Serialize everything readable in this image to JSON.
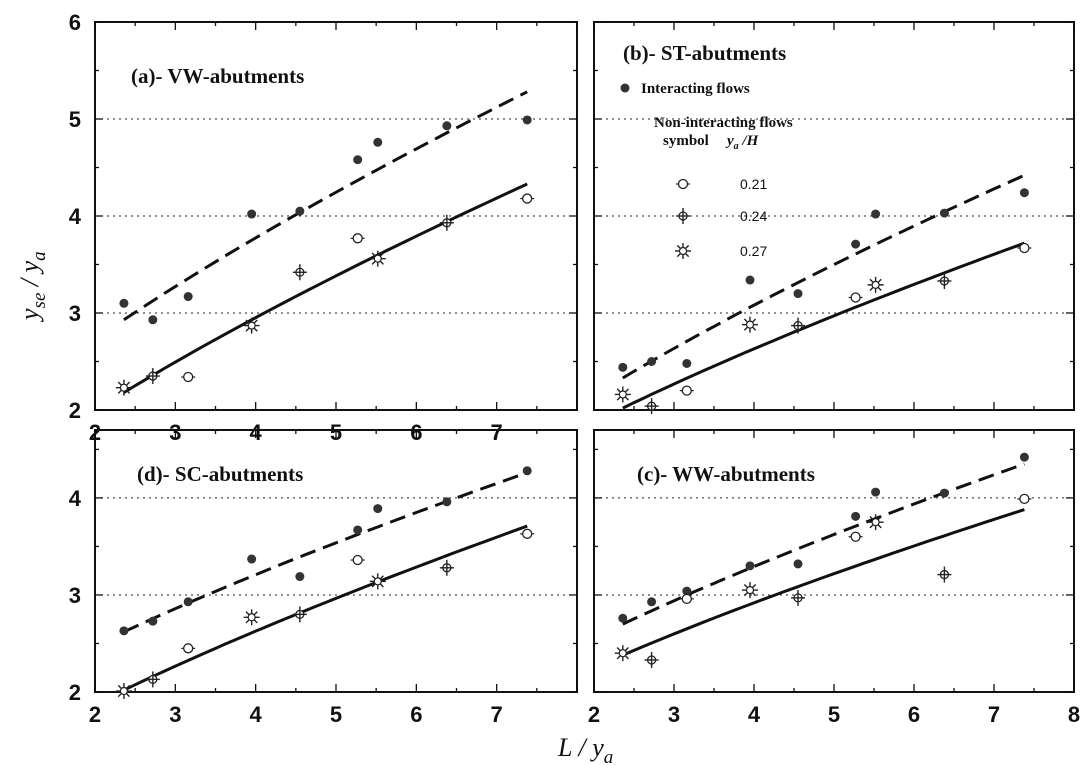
{
  "figure": {
    "xlabel": "L / y",
    "xlabel_sub": "a",
    "ylabel": "y",
    "ylabel_sub1": "se",
    "ylabel_mid": " / y",
    "ylabel_sub2": "a"
  },
  "legend": {
    "interacting": "Interacting flows",
    "noninteracting": "Non-interacting flows",
    "symbol_header": "symbol",
    "ratio_header": "y",
    "ratio_header_sub": "a",
    "ratio_header_tail": " /H",
    "entries": [
      {
        "marker": "open-circle",
        "value": "0.21"
      },
      {
        "marker": "cross-plus",
        "value": "0.24"
      },
      {
        "marker": "star",
        "value": "0.27"
      }
    ]
  },
  "chart_data": [
    {
      "type": "scatter",
      "title": "(a)- VW-abutments",
      "xlim": [
        2,
        8
      ],
      "ylim": [
        2,
        6
      ],
      "xticks": [
        2,
        3,
        4,
        5,
        6,
        7
      ],
      "yticks": [
        2,
        3,
        4,
        5,
        6
      ],
      "grid": "horizontal dotted at 3, 4, 5",
      "interacting": [
        [
          2.36,
          3.1
        ],
        [
          2.72,
          2.93
        ],
        [
          3.16,
          3.17
        ],
        [
          3.95,
          4.02
        ],
        [
          4.55,
          4.05
        ],
        [
          5.27,
          4.58
        ],
        [
          5.52,
          4.76
        ],
        [
          6.38,
          4.93
        ],
        [
          7.38,
          4.99
        ]
      ],
      "noninteracting": [
        {
          "marker": "open-circle",
          "points": [
            [
              3.16,
              2.34
            ],
            [
              5.27,
              3.77
            ],
            [
              7.38,
              4.18
            ]
          ]
        },
        {
          "marker": "cross-plus",
          "points": [
            [
              2.72,
              2.35
            ],
            [
              4.55,
              3.42
            ],
            [
              6.38,
              3.93
            ]
          ]
        },
        {
          "marker": "star",
          "points": [
            [
              2.36,
              2.23
            ],
            [
              3.95,
              2.87
            ],
            [
              5.52,
              3.56
            ]
          ]
        }
      ],
      "fit_interacting": {
        "style": "dashed",
        "x": [
          2.36,
          7.38
        ],
        "y": [
          2.93,
          5.28
        ]
      },
      "fit_noninteracting": {
        "style": "solid",
        "x": [
          2.36,
          7.38
        ],
        "y": [
          2.18,
          4.33
        ]
      }
    },
    {
      "type": "scatter",
      "title": "(b)- ST-abutments",
      "xlim": [
        2,
        8
      ],
      "ylim": [
        2,
        6
      ],
      "xticks": [],
      "yticks": [],
      "grid": "horizontal dotted at 3, 4, 5",
      "interacting": [
        [
          2.36,
          2.44
        ],
        [
          2.72,
          2.5
        ],
        [
          3.16,
          2.48
        ],
        [
          3.95,
          3.34
        ],
        [
          4.55,
          3.2
        ],
        [
          5.27,
          3.71
        ],
        [
          5.52,
          4.02
        ],
        [
          6.38,
          4.03
        ],
        [
          7.38,
          4.24
        ]
      ],
      "noninteracting": [
        {
          "marker": "open-circle",
          "points": [
            [
              3.16,
              2.2
            ],
            [
              5.27,
              3.16
            ],
            [
              7.38,
              3.67
            ]
          ]
        },
        {
          "marker": "cross-plus",
          "points": [
            [
              2.72,
              2.04
            ],
            [
              4.55,
              2.87
            ],
            [
              6.38,
              3.33
            ]
          ]
        },
        {
          "marker": "star",
          "points": [
            [
              2.36,
              2.16
            ],
            [
              3.95,
              2.88
            ],
            [
              5.52,
              3.29
            ]
          ]
        }
      ],
      "fit_interacting": {
        "style": "dashed",
        "x": [
          2.36,
          7.38
        ],
        "y": [
          2.33,
          4.42
        ]
      },
      "fit_noninteracting": {
        "style": "solid",
        "x": [
          2.36,
          7.38
        ],
        "y": [
          2.02,
          3.72
        ]
      }
    },
    {
      "type": "scatter",
      "title": "(d)- SC-abutments",
      "xlim": [
        2,
        8
      ],
      "ylim": [
        2,
        4.7
      ],
      "xticks": [
        2,
        3,
        4,
        5,
        6,
        7
      ],
      "yticks": [
        2,
        3,
        4
      ],
      "grid": "horizontal dotted at 3, 4",
      "interacting": [
        [
          2.36,
          2.63
        ],
        [
          2.72,
          2.73
        ],
        [
          3.16,
          2.93
        ],
        [
          3.95,
          3.37
        ],
        [
          4.55,
          3.19
        ],
        [
          5.27,
          3.67
        ],
        [
          5.52,
          3.89
        ],
        [
          6.38,
          3.96
        ],
        [
          7.38,
          4.28
        ]
      ],
      "noninteracting": [
        {
          "marker": "open-circle",
          "points": [
            [
              3.16,
              2.45
            ],
            [
              5.27,
              3.36
            ],
            [
              7.38,
              3.63
            ]
          ]
        },
        {
          "marker": "cross-plus",
          "points": [
            [
              2.72,
              2.13
            ],
            [
              4.55,
              2.8
            ],
            [
              6.38,
              3.28
            ]
          ]
        },
        {
          "marker": "star",
          "points": [
            [
              2.36,
              2.01
            ],
            [
              3.95,
              2.77
            ],
            [
              5.52,
              3.14
            ]
          ]
        }
      ],
      "fit_interacting": {
        "style": "dashed",
        "x": [
          2.36,
          7.38
        ],
        "y": [
          2.62,
          4.26
        ]
      },
      "fit_noninteracting": {
        "style": "solid",
        "x": [
          2.36,
          7.38
        ],
        "y": [
          2.02,
          3.71
        ]
      }
    },
    {
      "type": "scatter",
      "title": "(c)- WW-abutments",
      "xlim": [
        2,
        8
      ],
      "ylim": [
        2,
        4.7
      ],
      "xticks": [
        2,
        3,
        4,
        5,
        6,
        7,
        8
      ],
      "yticks": [],
      "grid": "horizontal dotted at 3, 4",
      "interacting": [
        [
          2.36,
          2.76
        ],
        [
          2.72,
          2.93
        ],
        [
          3.16,
          3.04
        ],
        [
          3.95,
          3.3
        ],
        [
          4.55,
          3.32
        ],
        [
          5.27,
          3.81
        ],
        [
          5.52,
          4.06
        ],
        [
          6.38,
          4.05
        ],
        [
          7.38,
          4.42
        ]
      ],
      "noninteracting": [
        {
          "marker": "open-circle",
          "points": [
            [
              3.16,
              2.96
            ],
            [
              5.27,
              3.6
            ],
            [
              7.38,
              3.99
            ]
          ]
        },
        {
          "marker": "cross-plus",
          "points": [
            [
              2.72,
              2.33
            ],
            [
              4.55,
              2.97
            ],
            [
              6.38,
              3.21
            ]
          ]
        },
        {
          "marker": "star",
          "points": [
            [
              2.36,
              2.4
            ],
            [
              3.95,
              3.05
            ],
            [
              5.52,
              3.75
            ]
          ]
        }
      ],
      "fit_interacting": {
        "style": "dashed",
        "x": [
          2.36,
          7.38
        ],
        "y": [
          2.7,
          4.35
        ]
      },
      "fit_noninteracting": {
        "style": "solid",
        "x": [
          2.36,
          7.38
        ],
        "y": [
          2.38,
          3.88
        ]
      }
    }
  ]
}
